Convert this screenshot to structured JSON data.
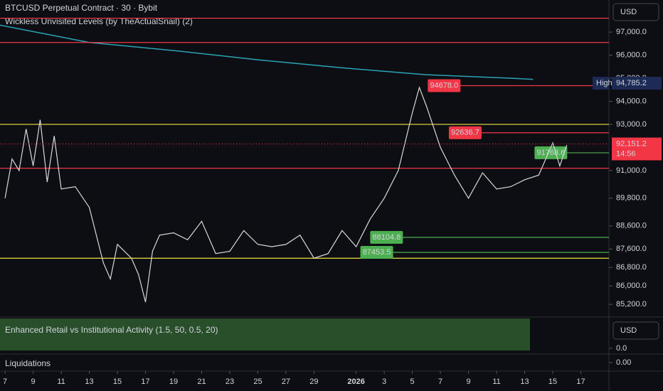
{
  "header": {
    "title": "BTCUSD Perpetual Contract · 30 · Bybit",
    "indicator": "Wickless Unvisited Levels (by TheActualSnail) (2)",
    "currency": "USD"
  },
  "chart_data": {
    "type": "line",
    "color": "#d9d9d9",
    "x": [
      0,
      0.5,
      1,
      1.5,
      2,
      2.5,
      3,
      3.5,
      4,
      5,
      6,
      7,
      7.5,
      8,
      9,
      9.5,
      10,
      10.5,
      11,
      12,
      13,
      14,
      15,
      16,
      17,
      18,
      19,
      20,
      21,
      21.5,
      22,
      23,
      24,
      25,
      26,
      27,
      28,
      29,
      29.5,
      30,
      31,
      32,
      33,
      34,
      35,
      36,
      37,
      38,
      39,
      39.5,
      40
    ],
    "values": [
      89800,
      91500,
      91000,
      92800,
      91200,
      93200,
      90500,
      92500,
      90200,
      90300,
      89400,
      87000,
      86300,
      87800,
      87200,
      86500,
      85300,
      87500,
      88200,
      88300,
      88000,
      88800,
      87400,
      87500,
      88400,
      87800,
      87700,
      87800,
      88200,
      87700,
      87200,
      87400,
      88400,
      87700,
      88900,
      89800,
      91000,
      93500,
      94600,
      93800,
      92000,
      90800,
      89800,
      90900,
      90200,
      90300,
      90600,
      90800,
      92200,
      91200,
      92100
    ],
    "xlim": [
      -0.36,
      43.0
    ],
    "ylim": [
      84650,
      98390
    ],
    "yticks": [
      {
        "value": 97000,
        "label": "97,000.0"
      },
      {
        "value": 96000,
        "label": "96,000.0"
      },
      {
        "value": 95000,
        "label": "95,000.0"
      },
      {
        "value": 94000,
        "label": "94,000.0"
      },
      {
        "value": 93000,
        "label": "93,000.0"
      },
      {
        "value": 91000,
        "label": "91,000.0"
      },
      {
        "value": 89800,
        "label": "89,800.0"
      },
      {
        "value": 88600,
        "label": "88,600.0"
      },
      {
        "value": 87600,
        "label": "87,600.0"
      },
      {
        "value": 86800,
        "label": "86,800.0"
      },
      {
        "value": 86000,
        "label": "86,000.0"
      },
      {
        "value": 85200,
        "label": "85,200.0"
      }
    ],
    "xticks": [
      {
        "value": 0,
        "label": "7"
      },
      {
        "value": 2,
        "label": "9"
      },
      {
        "value": 4,
        "label": "11"
      },
      {
        "value": 6,
        "label": "13"
      },
      {
        "value": 8,
        "label": "15"
      },
      {
        "value": 10,
        "label": "17"
      },
      {
        "value": 12,
        "label": "19"
      },
      {
        "value": 14,
        "label": "21"
      },
      {
        "value": 16,
        "label": "23"
      },
      {
        "value": 18,
        "label": "25"
      },
      {
        "value": 20,
        "label": "27"
      },
      {
        "value": 22,
        "label": "29"
      },
      {
        "value": 25,
        "label": "2026"
      },
      {
        "value": 27,
        "label": "3"
      },
      {
        "value": 29,
        "label": "5"
      },
      {
        "value": 31,
        "label": "7"
      },
      {
        "value": 33,
        "label": "9"
      },
      {
        "value": 35,
        "label": "11"
      },
      {
        "value": 37,
        "label": "13"
      },
      {
        "value": 39,
        "label": "15"
      },
      {
        "value": 41,
        "label": "17"
      }
    ],
    "moving_average": {
      "color": "#2aa3b5",
      "x": [
        -0.36,
        6,
        12,
        18,
        24,
        30,
        36,
        37.6
      ],
      "values": [
        97300,
        96550,
        96200,
        95800,
        95450,
        95150,
        95000,
        94950
      ]
    },
    "levels": [
      {
        "value": 97600,
        "color": "#f23645",
        "x0": -0.36
      },
      {
        "value": 96550,
        "color": "#f23645",
        "x0": -0.36
      },
      {
        "value": 91100,
        "color": "#f23645",
        "x0": -0.36
      },
      {
        "value": 93000,
        "color": "#f0e040",
        "x0": -0.36
      },
      {
        "value": 87200,
        "color": "#f0e040",
        "x0": -0.36
      },
      {
        "value": 94678.0,
        "label": "94678.0",
        "color": "#f23645",
        "x0": 30.1
      },
      {
        "value": 92636.7,
        "label": "92636.7",
        "color": "#f23645",
        "x0": 31.6
      },
      {
        "value": 91768.6,
        "label": "91768.6",
        "color": "#4caf50",
        "x0": 37.7
      },
      {
        "value": 88104.8,
        "label": "88104.8",
        "color": "#4caf50",
        "x0": 26.0
      },
      {
        "value": 87453.5,
        "label": "87453.5",
        "color": "#4caf50",
        "x0": 25.3
      }
    ],
    "high": {
      "label": "High",
      "value": 94785.2,
      "value_label": "94,785.2"
    },
    "last": {
      "value": 92151.2,
      "label": "92,151.2",
      "countdown": "14:56"
    }
  },
  "panel": {
    "title": "Enhanced Retail vs Institutional Activity (1.5, 50, 0.5, 20)",
    "currency": "USD",
    "tick": {
      "value": 0,
      "label": "0.0"
    }
  },
  "liquidations": {
    "title": "Liquidations",
    "tick": {
      "value": 0,
      "label": "0.00"
    }
  }
}
